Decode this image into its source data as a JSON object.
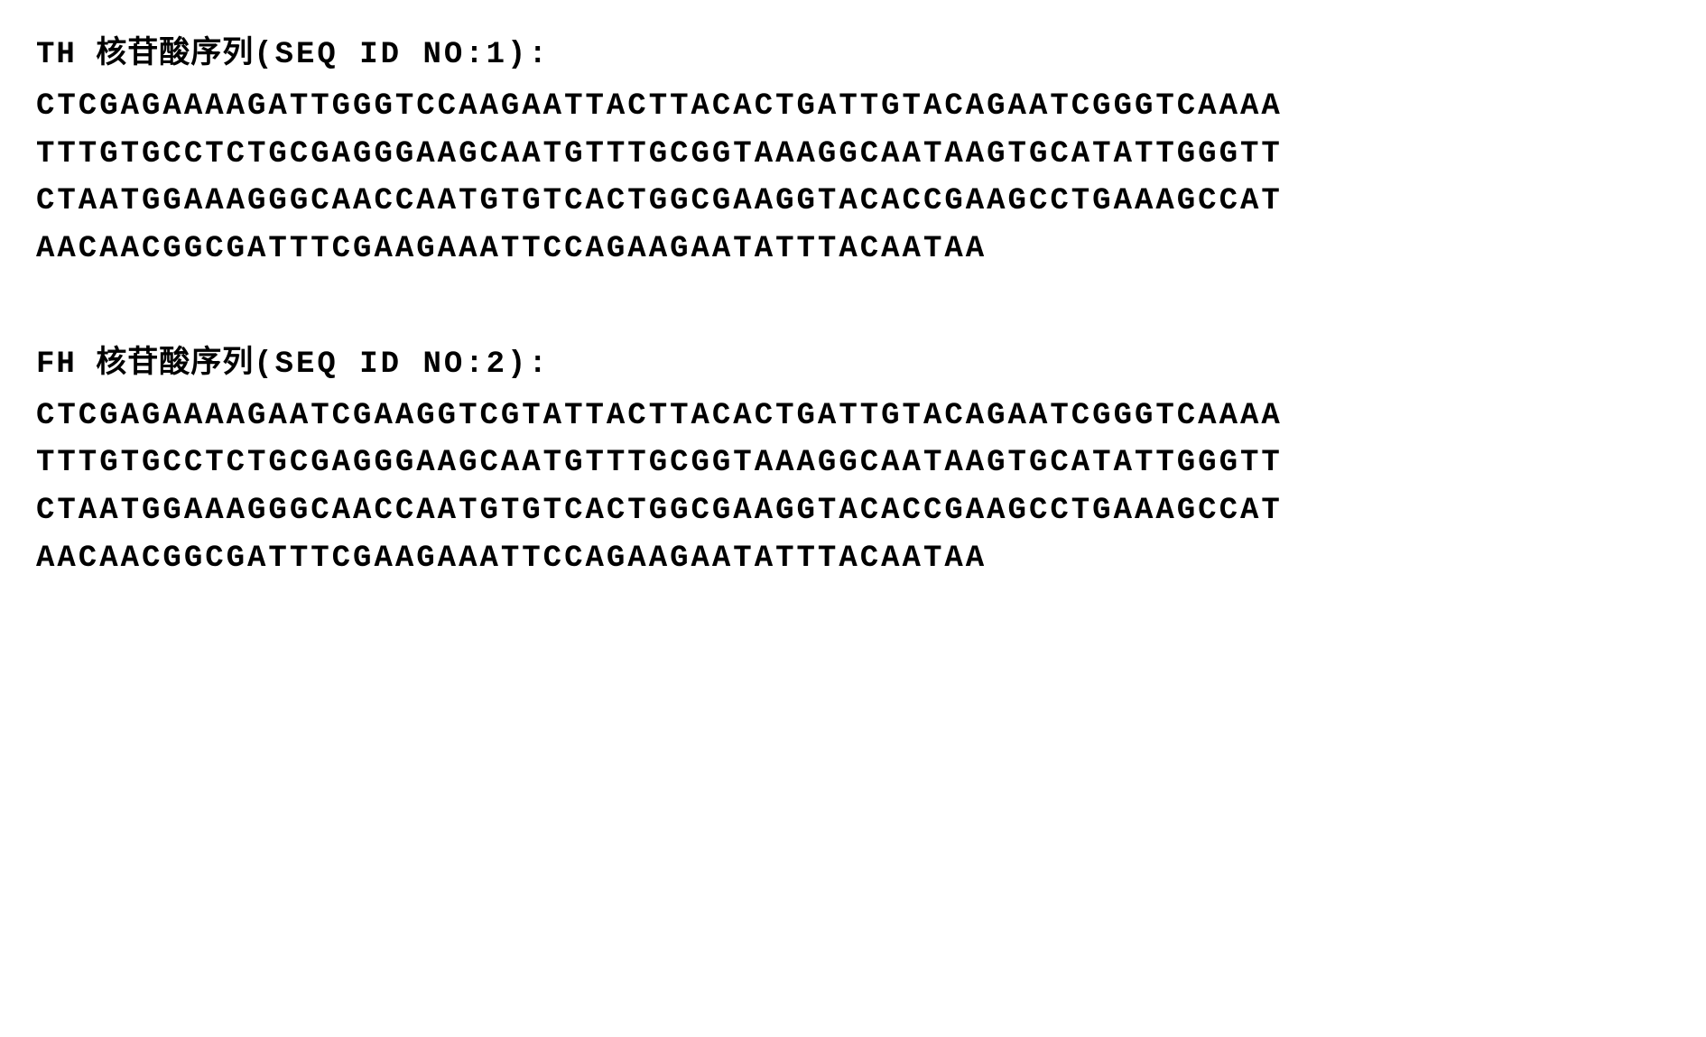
{
  "sequences": [
    {
      "prefix": "TH",
      "chinese_label": "核苷酸序列",
      "seq_id": "(SEQ ID NO:1):",
      "lines": [
        "CTCGAGAAAAGATTGGGTCCAAGAATTACTTACACTGATTGTACAGAATCGGGTCAAAA",
        "TTTGTGCCTCTGCGAGGGAAGCAATGTTTGCGGTAAAGGCAATAAGTGCATATTGGGTT",
        "CTAATGGAAAGGGCAACCAATGTGTCACTGGCGAAGGTACACCGAAGCCTGAAAGCCAT",
        "AACAACGGCGATTTCGAAGAAATTCCAGAAGAATATTTACAATAA"
      ]
    },
    {
      "prefix": "FH",
      "chinese_label": "核苷酸序列",
      "seq_id": "(SEQ ID NO:2):",
      "lines": [
        "CTCGAGAAAAGAATCGAAGGTCGTATTACTTACACTGATTGTACAGAATCGGGTCAAAA",
        "TTTGTGCCTCTGCGAGGGAAGCAATGTTTGCGGTAAAGGCAATAAGTGCATATTGGGTT",
        "CTAATGGAAAGGGCAACCAATGTGTCACTGGCGAAGGTACACCGAAGCCTGAAAGCCAT",
        "AACAACGGCGATTTCGAAGAAATTCCAGAAGAATATTTACAATAA"
      ]
    }
  ],
  "styling": {
    "background_color": "#ffffff",
    "text_color": "#000000",
    "title_fontsize": 34,
    "sequence_fontsize": 34,
    "font_weight": "bold",
    "letter_spacing_sequence": 3,
    "letter_spacing_title": 1,
    "line_height": 1.55,
    "block_spacing": 70,
    "font_family_mono": "Courier New",
    "font_family_chinese": "SimSun"
  }
}
